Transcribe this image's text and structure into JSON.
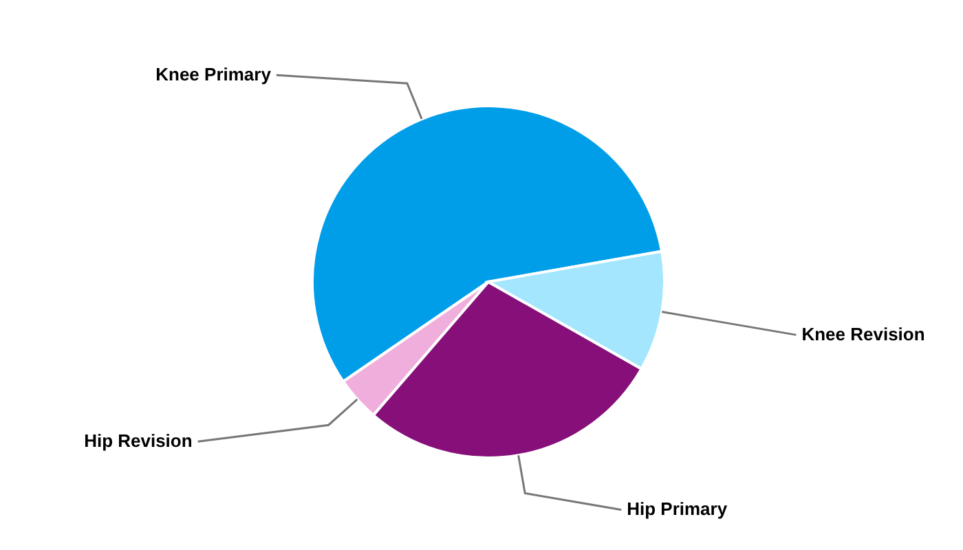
{
  "chart_data": {
    "type": "pie",
    "categories": [
      "Knee Primary",
      "Hip Revision",
      "Hip Primary",
      "Knee Revision"
    ],
    "values": [
      56.8,
      4.1,
      28.1,
      11
    ],
    "colors": [
      "#009de9",
      "#f0aedc",
      "#860f79",
      "#a3e6fd"
    ],
    "legend": false
  }
}
